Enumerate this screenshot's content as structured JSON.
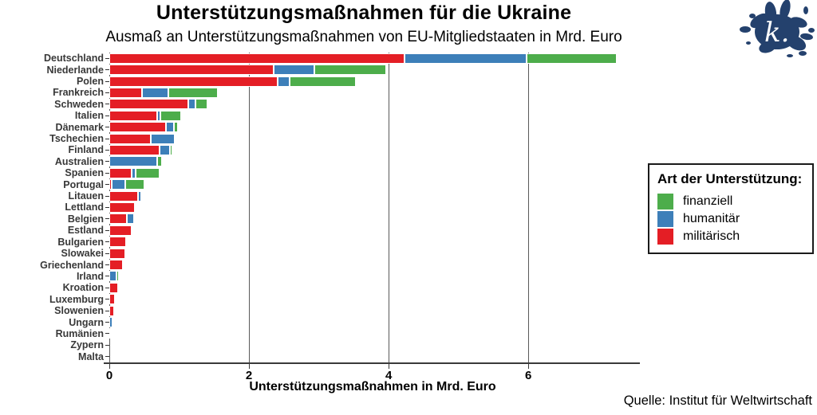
{
  "header": {
    "title": "Unterstützungsmaßnahmen für die Ukraine",
    "subtitle": "Ausmaß an Unterstützungsmaßnahmen von EU-Mitgliedstaaten in Mrd. Euro"
  },
  "source_note": "Quelle: Institut für Weltwirtschaft",
  "logo": {
    "letter": "k.",
    "color": "#24416d"
  },
  "legend": {
    "title": "Art der Unterstützung:",
    "items": [
      {
        "label": "finanziell",
        "color": "#4dad4b"
      },
      {
        "label": "humanitär",
        "color": "#3d7fb9"
      },
      {
        "label": "militärisch",
        "color": "#e41e25"
      }
    ]
  },
  "chart_data": {
    "type": "bar",
    "orientation": "horizontal-stacked",
    "title": "Unterstützungsmaßnahmen für die Ukraine",
    "subtitle": "Ausmaß an Unterstützungsmaßnahmen von EU-Mitgliedstaaten in Mrd. Euro",
    "xlabel": "Unterstützungsmaßnahmen in Mrd. Euro",
    "ylabel": "",
    "xlim": [
      0,
      7.54
    ],
    "x_ticks": [
      0,
      2,
      4,
      6
    ],
    "grid": "vertical-only",
    "legend_position": "right",
    "categories": [
      "Deutschland",
      "Niederlande",
      "Polen",
      "Frankreich",
      "Schweden",
      "Italien",
      "Dänemark",
      "Tschechien",
      "Finland",
      "Australien",
      "Spanien",
      "Portugal",
      "Litauen",
      "Lettland",
      "Belgien",
      "Estland",
      "Bulgarien",
      "Slowakei",
      "Griechenland",
      "Irland",
      "Kroation",
      "Luxemburg",
      "Slowenien",
      "Ungarn",
      "Rumänien",
      "Zypern",
      "Malta"
    ],
    "series": [
      {
        "name": "militärisch",
        "color": "#e41e25",
        "values": [
          4.23,
          2.35,
          2.41,
          0.47,
          1.13,
          0.68,
          0.81,
          0.59,
          0.72,
          0,
          0.32,
          0.03,
          0.41,
          0.37,
          0.25,
          0.32,
          0.24,
          0.23,
          0.19,
          0,
          0.13,
          0.08,
          0.07,
          0,
          0,
          0,
          0
        ]
      },
      {
        "name": "humanitär",
        "color": "#3d7fb9",
        "values": [
          1.75,
          0.59,
          0.17,
          0.38,
          0.1,
          0.05,
          0.11,
          0.35,
          0.15,
          0.68,
          0.06,
          0.2,
          0.05,
          0,
          0.1,
          0,
          0,
          0,
          0,
          0.1,
          0,
          0,
          0,
          0.04,
          0.02,
          0,
          0
        ]
      },
      {
        "name": "finanziell",
        "color": "#4dad4b",
        "values": [
          1.29,
          1.02,
          0.95,
          0.7,
          0.18,
          0.3,
          0.06,
          0.02,
          0.03,
          0.07,
          0.34,
          0.27,
          0.02,
          0.02,
          0,
          0,
          0,
          0,
          0,
          0.04,
          0,
          0,
          0,
          0,
          0,
          0,
          0
        ]
      }
    ],
    "totals": [
      7.27,
      3.96,
      3.53,
      1.55,
      1.41,
      1.03,
      0.98,
      0.96,
      0.9,
      0.75,
      0.72,
      0.5,
      0.48,
      0.39,
      0.35,
      0.32,
      0.24,
      0.23,
      0.19,
      0.14,
      0.13,
      0.08,
      0.07,
      0.04,
      0.02,
      0,
      0
    ]
  },
  "layout_colors": {
    "grid": "#5a5a5a",
    "axis": "#3a3a3a"
  }
}
